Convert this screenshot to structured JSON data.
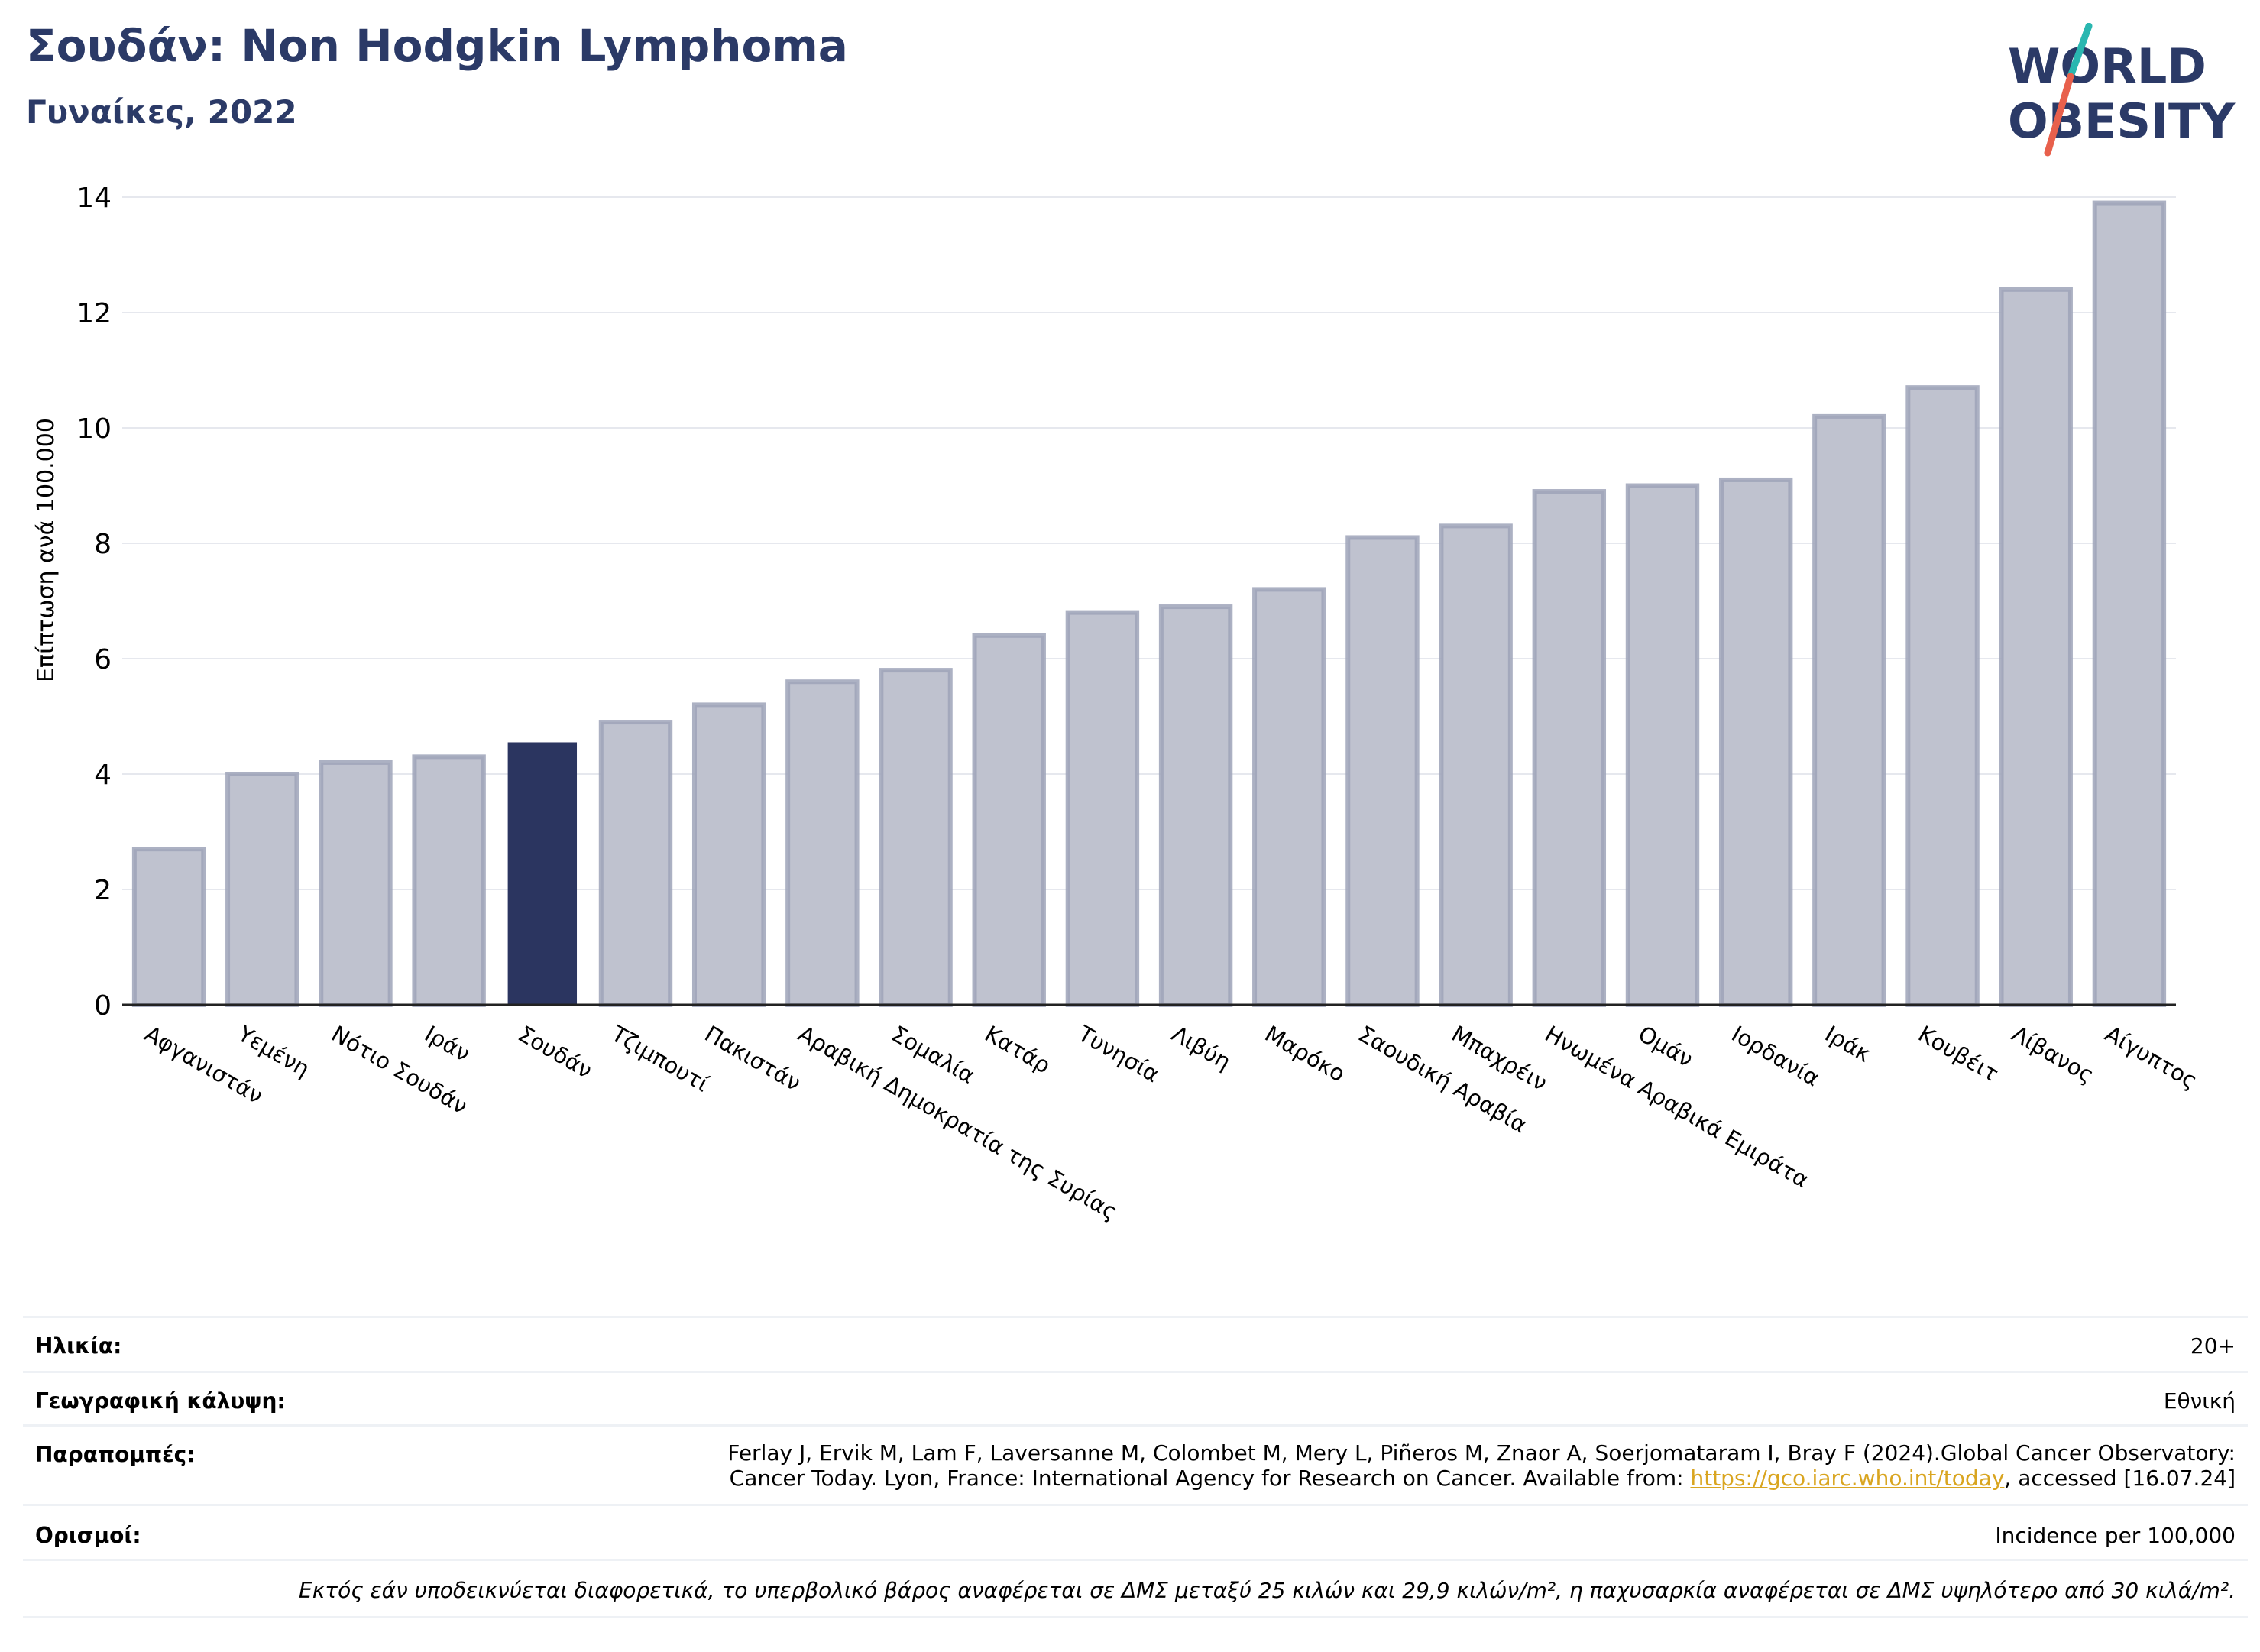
{
  "header": {
    "title": "Σουδάν: Non Hodgkin Lymphoma",
    "subtitle": "Γυναίκες, 2022"
  },
  "logo": {
    "line1": "WORLD",
    "line2": "OBESITY",
    "colors": {
      "text": "#2b3a67",
      "slash_top": "#2ab7b0",
      "slash_bottom": "#e8604c"
    }
  },
  "chart_data": {
    "type": "bar",
    "ylabel": "Επίπτωση ανά 100.000",
    "ylim": [
      0,
      14
    ],
    "yticks": [
      0,
      2,
      4,
      6,
      8,
      10,
      12,
      14
    ],
    "grid": true,
    "highlight": "Σουδάν",
    "colors": {
      "bar": "#bfc2cf",
      "bar_edge": "#9ea3b8",
      "highlight": "#2b3560"
    },
    "categories": [
      "Αφγανιστάν",
      "Υεμένη",
      "Νότιο Σουδάν",
      "Ιράν",
      "Σουδάν",
      "Τζιμπουτί",
      "Πακιστάν",
      "Αραβική Δημοκρατία της Συρίας",
      "Σομαλία",
      "Κατάρ",
      "Τυνησία",
      "Λιβύη",
      "Μαρόκο",
      "Σαουδική Αραβία",
      "Μπαχρέιν",
      "Ηνωμένα Αραβικά Εμιράτα",
      "Ομάν",
      "Ιορδανία",
      "Ιράκ",
      "Κουβέιτ",
      "Λίβανος",
      "Αίγυπτος"
    ],
    "values": [
      2.7,
      4.0,
      4.2,
      4.3,
      4.55,
      4.9,
      5.2,
      5.6,
      5.8,
      6.4,
      6.8,
      6.9,
      7.2,
      8.1,
      8.3,
      8.9,
      9.0,
      9.1,
      10.2,
      10.7,
      12.4,
      13.9
    ]
  },
  "info": {
    "age_label": "Ηλικία:",
    "age_value": "20+",
    "coverage_label": "Γεωγραφική κάλυψη:",
    "coverage_value": "Εθνική",
    "refs_label": "Παραπομπές:",
    "refs_line1": "Ferlay J, Ervik M, Lam F, Laversanne M, Colombet M, Mery L, Piñeros M, Znaor A, Soerjomataram I, Bray F (2024).Global Cancer Observatory:",
    "refs_line2_pre": "Cancer Today. Lyon, France: International Agency for Research on Cancer. Available from: ",
    "refs_link": "https://gco.iarc.who.int/today",
    "refs_line2_post": ", accessed [16.07.24]",
    "defs_label": "Ορισμοί:",
    "defs_value": "Incidence per 100,000",
    "note": "Εκτός εάν υποδεικνύεται διαφορετικά, το υπερβολικό βάρος αναφέρεται σε ΔΜΣ μεταξύ 25 κιλών και 29,9 κιλών/m², η παχυσαρκία αναφέρεται σε ΔΜΣ υψηλότερο από 30 κιλά/m²."
  }
}
